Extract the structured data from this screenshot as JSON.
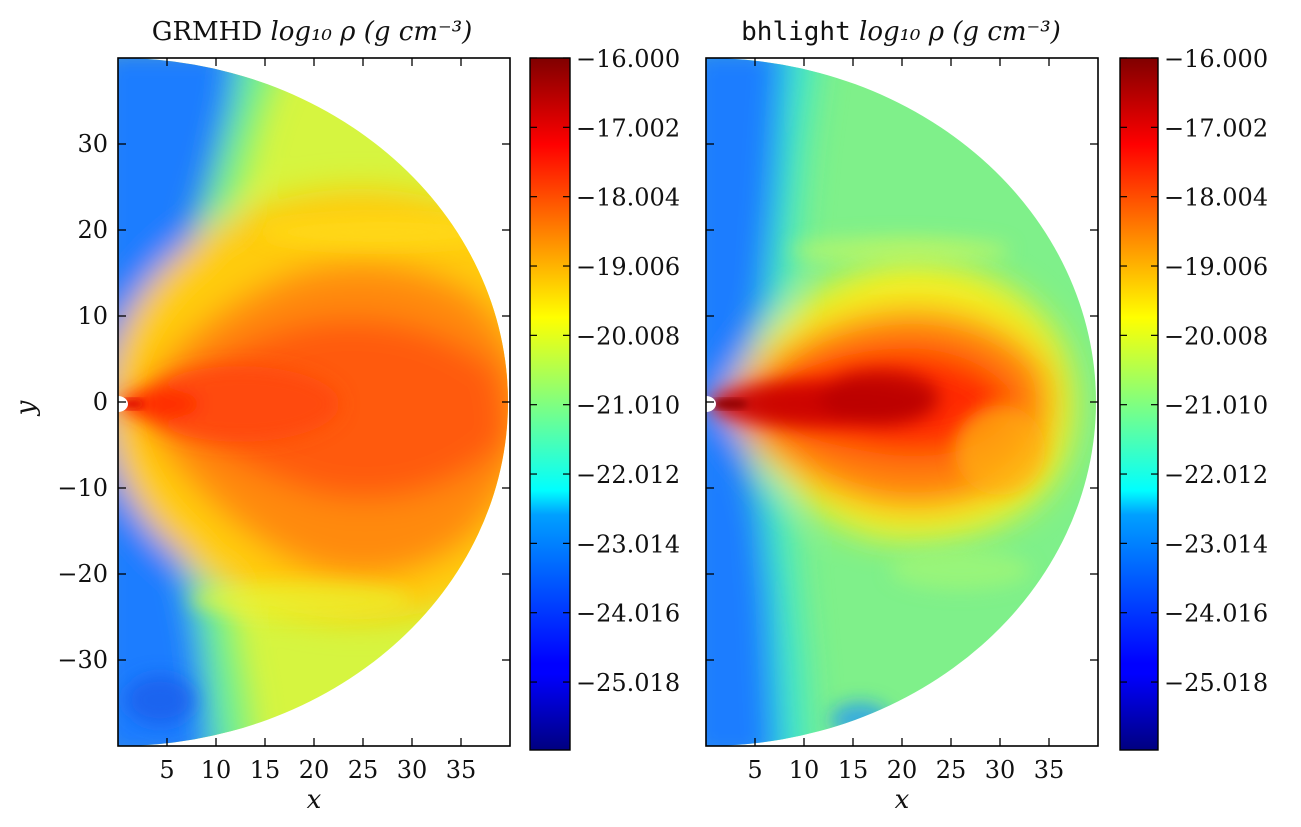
{
  "chart_data": [
    {
      "type": "heatmap",
      "title_prefix": "GRMHD",
      "title_math": "log₁₀ ρ (g cm⁻³)",
      "xlabel": "x",
      "ylabel": "y",
      "xlim": [
        0,
        40
      ],
      "ylim": [
        -40,
        40
      ],
      "xticks": [
        "5",
        "10",
        "15",
        "20",
        "25",
        "30",
        "35"
      ],
      "yticks": [
        "30",
        "20",
        "10",
        "0",
        "−10",
        "−20",
        "−30"
      ],
      "domain": "half-disk of radius 40 (x ≥ 0)",
      "colormap": "jet",
      "colorbar": {
        "range": [
          -26.0,
          -16.0
        ],
        "ticks": [
          "−16.000",
          "−17.002",
          "−18.004",
          "−19.006",
          "−20.008",
          "−21.010",
          "−22.012",
          "−23.014",
          "−24.016",
          "−25.018"
        ]
      },
      "features": {
        "disk_value": -18.0,
        "background_value": -20.0,
        "funnel_value": -23.5,
        "disk_extent_x": 40,
        "disk_half_height": 20
      }
    },
    {
      "type": "heatmap",
      "title_prefix": "bhlight",
      "title_math": "log₁₀ ρ (g cm⁻³)",
      "xlabel": "x",
      "ylabel": "",
      "xlim": [
        0,
        40
      ],
      "ylim": [
        -40,
        40
      ],
      "xticks": [
        "5",
        "10",
        "15",
        "20",
        "25",
        "30",
        "35"
      ],
      "yticks": [],
      "domain": "half-disk of radius 40 (x ≥ 0)",
      "colormap": "jet",
      "colorbar": {
        "range": [
          -26.0,
          -16.0
        ],
        "ticks": [
          "−16.000",
          "−17.002",
          "−18.004",
          "−19.006",
          "−20.008",
          "−21.010",
          "−22.012",
          "−23.014",
          "−24.016",
          "−25.018"
        ]
      },
      "features": {
        "disk_value": -17.5,
        "background_value": -21.0,
        "funnel_value": -23.5,
        "disk_extent_x": 34,
        "disk_half_height": 11
      }
    }
  ],
  "colors": {
    "jet_stops": [
      "#000080",
      "#0000ff",
      "#0080ff",
      "#00ffff",
      "#80ff80",
      "#ffff00",
      "#ff8000",
      "#ff0000",
      "#800000"
    ]
  }
}
